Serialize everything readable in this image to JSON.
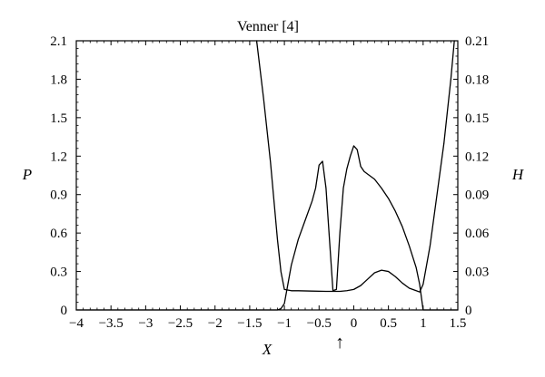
{
  "chart_data": {
    "type": "line",
    "title": "Venner [4]",
    "xlabel": "X",
    "ylabel_left": "P",
    "ylabel_right": "H",
    "xlim": [
      -4,
      1.5
    ],
    "ylim_left": [
      0,
      2.1
    ],
    "ylim_right": [
      0,
      0.21
    ],
    "x_ticks": [
      -4,
      -3.5,
      -3,
      -2.5,
      -2,
      -1.5,
      -1,
      -0.5,
      0,
      0.5,
      1,
      1.5
    ],
    "x_tick_labels": [
      "−4",
      "−3.5",
      "−3",
      "−2.5",
      "−2",
      "−1.5",
      "−1",
      "−0.5",
      "0",
      "0.5",
      "1",
      "1.5"
    ],
    "y_left_ticks": [
      0,
      0.3,
      0.6,
      0.9,
      1.2,
      1.5,
      1.8,
      2.1
    ],
    "y_left_tick_labels": [
      "0",
      "0.3",
      "0.6",
      "0.9",
      "1.2",
      "1.5",
      "1.8",
      "2.1"
    ],
    "y_right_ticks": [
      0,
      0.03,
      0.06,
      0.09,
      0.12,
      0.15,
      0.18,
      0.21
    ],
    "y_right_tick_labels": [
      "0",
      "0.03",
      "0.06",
      "0.09",
      "0.12",
      "0.15",
      "0.18",
      "0.21"
    ],
    "grid": false,
    "annotations": [
      {
        "text": "↑",
        "x": -0.2
      }
    ],
    "series": [
      {
        "axis": "left",
        "x": [
          -4,
          -1.2,
          -1.1,
          -1.05,
          -1.0,
          -0.95,
          -0.9,
          -0.8,
          -0.7,
          -0.6,
          -0.55,
          -0.5,
          -0.45,
          -0.4,
          -0.35,
          -0.3,
          -0.25,
          -0.2,
          -0.15,
          -0.1,
          -0.05,
          0.0,
          0.05,
          0.1,
          0.15,
          0.2,
          0.3,
          0.4,
          0.5,
          0.6,
          0.7,
          0.8,
          0.9,
          0.95,
          1.0,
          1.5
        ],
        "y": [
          0,
          0,
          0.0,
          0.01,
          0.05,
          0.2,
          0.35,
          0.55,
          0.7,
          0.85,
          0.95,
          1.13,
          1.16,
          0.95,
          0.55,
          0.15,
          0.16,
          0.6,
          0.95,
          1.1,
          1.2,
          1.28,
          1.25,
          1.12,
          1.08,
          1.06,
          1.02,
          0.95,
          0.87,
          0.77,
          0.65,
          0.5,
          0.33,
          0.2,
          0.0,
          0
        ]
      },
      {
        "axis": "right",
        "x": [
          -1.4,
          -1.3,
          -1.2,
          -1.15,
          -1.1,
          -1.05,
          -1.0,
          -0.9,
          -0.8,
          -0.6,
          -0.4,
          -0.2,
          -0.1,
          0.0,
          0.1,
          0.2,
          0.3,
          0.4,
          0.5,
          0.6,
          0.7,
          0.8,
          0.9,
          0.95,
          1.0,
          1.1,
          1.2,
          1.3,
          1.4,
          1.45
        ],
        "y": [
          0.21,
          0.165,
          0.115,
          0.085,
          0.055,
          0.03,
          0.016,
          0.015,
          0.015,
          0.0147,
          0.0145,
          0.0145,
          0.015,
          0.016,
          0.019,
          0.024,
          0.029,
          0.031,
          0.03,
          0.026,
          0.021,
          0.017,
          0.015,
          0.014,
          0.02,
          0.05,
          0.09,
          0.13,
          0.18,
          0.21
        ]
      }
    ]
  }
}
